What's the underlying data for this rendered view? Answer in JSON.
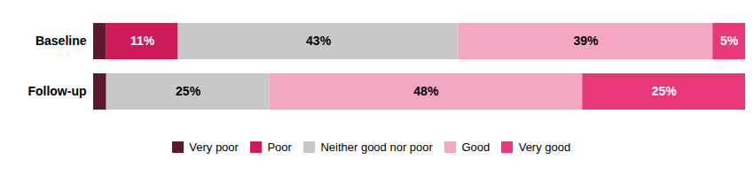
{
  "chart_data": {
    "type": "bar",
    "orientation": "horizontal",
    "stacked": true,
    "data_labels": true,
    "categories": [
      "Baseline",
      "Follow-up"
    ],
    "series": [
      {
        "name": "Very poor",
        "color": "#5b1a2e",
        "values": [
          2,
          2
        ],
        "value_labels": [
          null,
          null
        ]
      },
      {
        "name": "Poor",
        "color": "#cc1a5a",
        "values": [
          11,
          0
        ],
        "value_labels": [
          "11%",
          null
        ]
      },
      {
        "name": "Neither good nor poor",
        "color": "#c8c8c8",
        "values": [
          43,
          25
        ],
        "value_labels": [
          "43%",
          "25%"
        ]
      },
      {
        "name": "Good",
        "color": "#f4a7c3",
        "values": [
          39,
          48
        ],
        "value_labels": [
          "39%",
          "48%"
        ]
      },
      {
        "name": "Very good",
        "color": "#e8387a",
        "values": [
          5,
          25
        ],
        "value_labels": [
          "5%",
          "25%"
        ]
      }
    ],
    "xlim": [
      0,
      100
    ],
    "xticks": [],
    "tick_labels": "y",
    "grid": false,
    "legend": "bottom"
  }
}
